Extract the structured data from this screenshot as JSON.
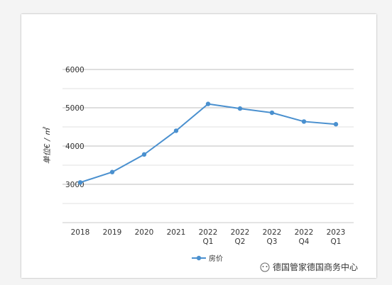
{
  "chart_data": {
    "type": "line",
    "ylabel": "单位€ / ㎡",
    "ylim": [
      2000,
      6000
    ],
    "yticks": [
      3000,
      4000,
      5000,
      6000
    ],
    "grid": true,
    "legend_position": "bottom",
    "categories": [
      [
        "2018"
      ],
      [
        "2019"
      ],
      [
        "2020"
      ],
      [
        "2021"
      ],
      [
        "2022",
        "Q1"
      ],
      [
        "2022",
        "Q2"
      ],
      [
        "2022",
        "Q3"
      ],
      [
        "2022",
        "Q4"
      ],
      [
        "2023",
        "Q1"
      ]
    ],
    "series": [
      {
        "name": "房价",
        "color": "#4a90cf",
        "values": [
          3050,
          3320,
          3780,
          4400,
          5100,
          4980,
          4870,
          4640,
          4570
        ]
      }
    ]
  },
  "watermark": {
    "text": "德国管家德国商务中心",
    "icon": "wechat-icon"
  }
}
